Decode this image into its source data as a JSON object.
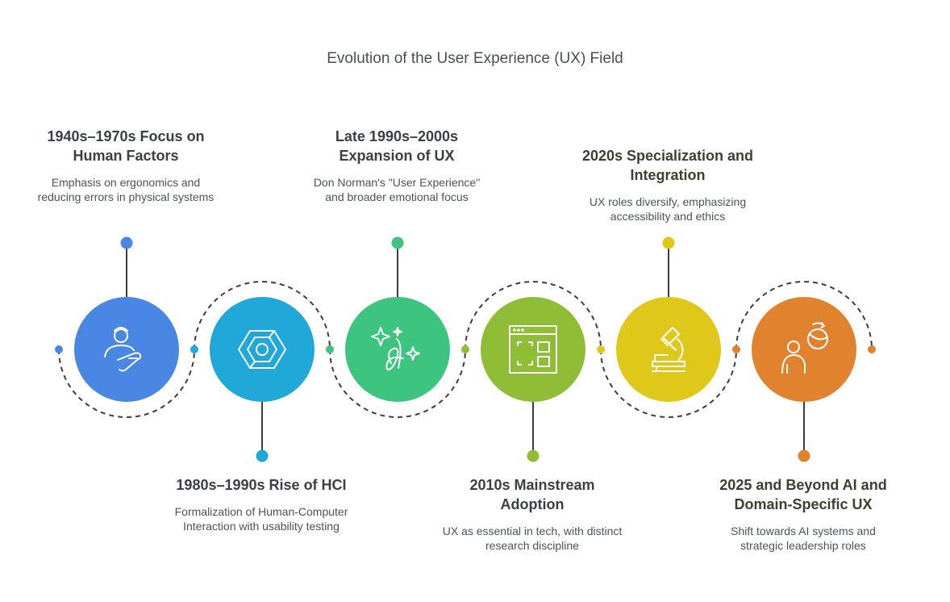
{
  "title": "Evolution of the User Experience (UX) Field",
  "colors": {
    "blue": "#4a86e4",
    "cyan": "#1fa8d8",
    "green": "#3dc47e",
    "lime": "#8fbe36",
    "yellow": "#e0c81a",
    "orange": "#e0822e",
    "dash": "#3d3d3d",
    "stem": "#3d3d3d"
  },
  "stages": [
    {
      "heading": "1940s–1970s Focus on Human Factors",
      "desc": "Emphasis on ergonomics and reducing errors in physical systems",
      "icon": "person-hand-icon",
      "color": "#4a86e4"
    },
    {
      "heading": "1980s–1990s Rise of HCI",
      "desc": "Formalization of Human-Computer Interaction with usability testing",
      "icon": "hexagon-cube-icon",
      "color": "#1fa8d8"
    },
    {
      "heading": "Late 1990s–2000s Expansion of UX",
      "desc": "Don Norman's \"User Experience\" and broader emotional focus",
      "icon": "sparkle-signature-icon",
      "color": "#3dc47e"
    },
    {
      "heading": "2010s Mainstream Adoption",
      "desc": "UX as essential in tech, with distinct research discipline",
      "icon": "browser-layout-icon",
      "color": "#8fbe36"
    },
    {
      "heading": "2020s Specialization and Integration",
      "desc": "UX roles diversify, emphasizing accessibility and ethics",
      "icon": "microscope-icon",
      "color": "#e0c81a"
    },
    {
      "heading": "2025 and Beyond AI and Domain-Specific UX",
      "desc": "Shift towards AI systems and strategic leadership roles",
      "icon": "person-globe-icon",
      "color": "#e0822e"
    }
  ]
}
